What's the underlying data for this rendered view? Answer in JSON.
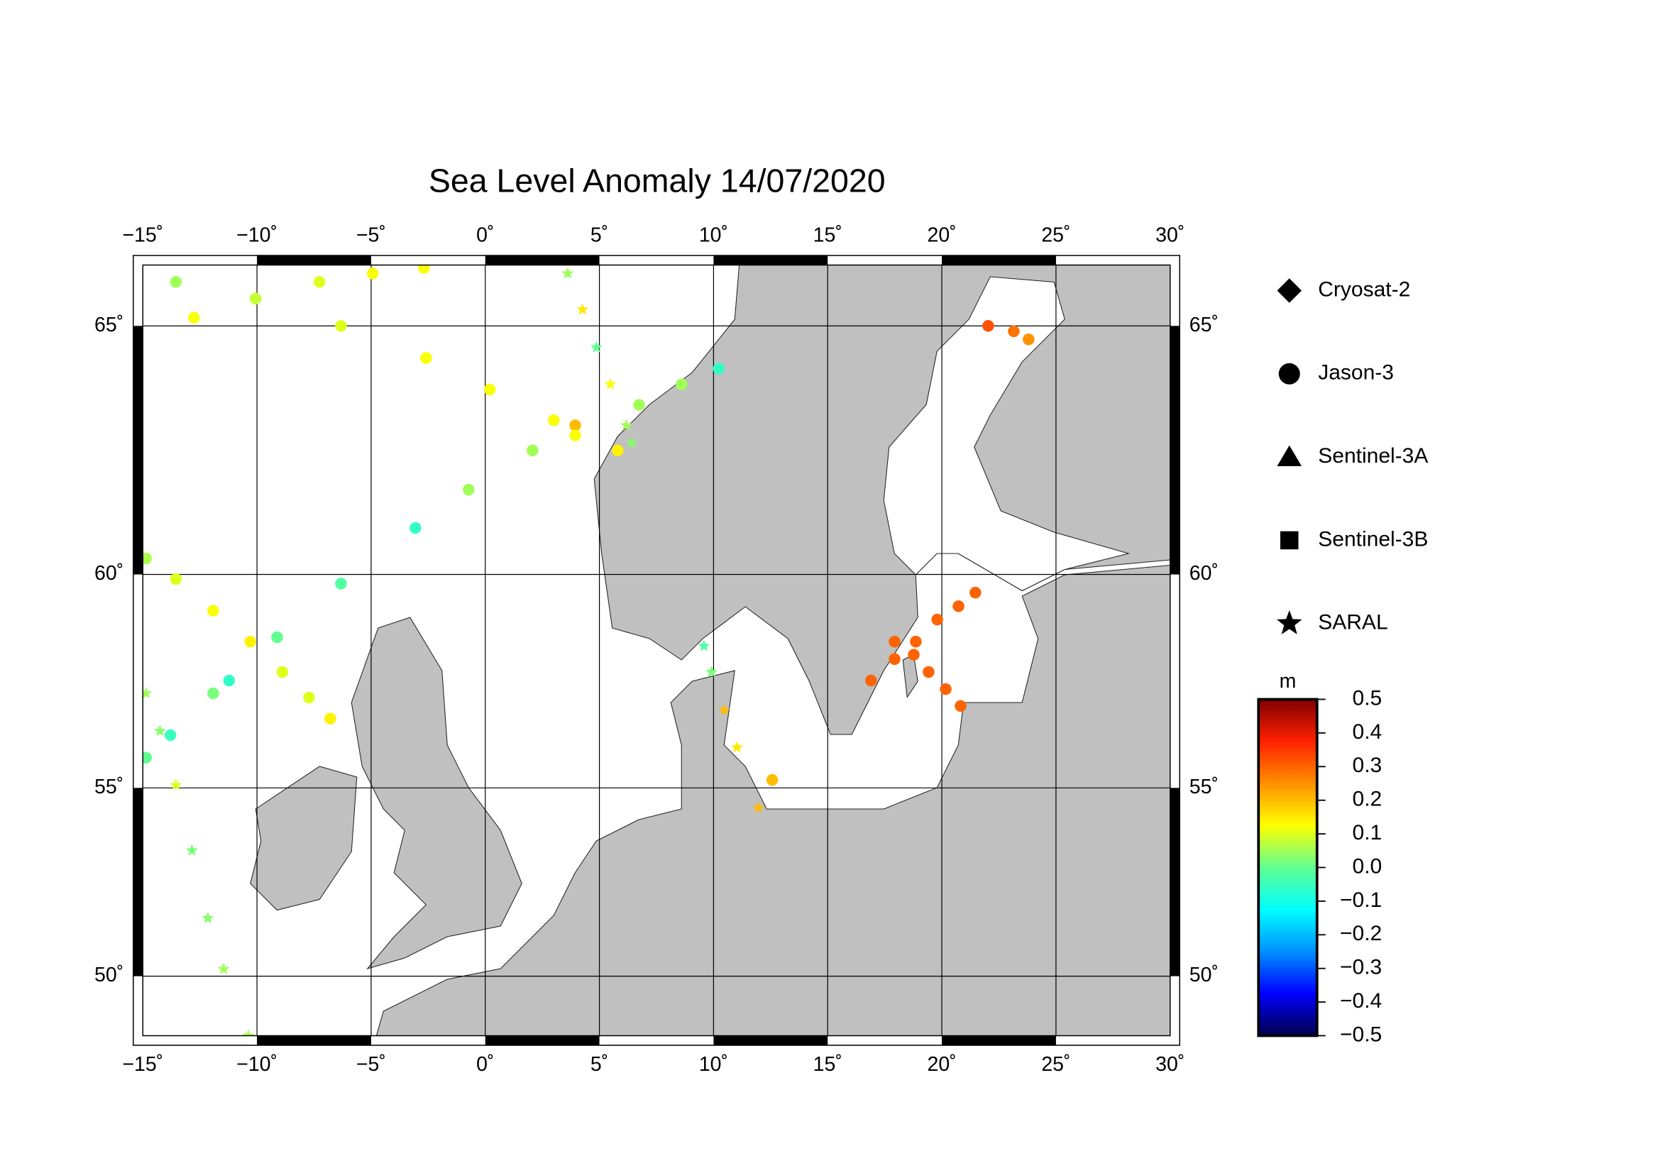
{
  "chart_data": {
    "type": "track-map",
    "title": "Sea Level Anomaly 14/07/2020",
    "projection": "mercator",
    "xlim": [
      -15,
      30
    ],
    "ylim": [
      48.3,
      66.1
    ],
    "xticks": [
      {
        "value": -15,
        "label": "−15˚"
      },
      {
        "value": -10,
        "label": "−10˚"
      },
      {
        "value": -5,
        "label": "−5˚"
      },
      {
        "value": 0,
        "label": "0˚"
      },
      {
        "value": 5,
        "label": "5˚"
      },
      {
        "value": 10,
        "label": "10˚"
      },
      {
        "value": 15,
        "label": "15˚"
      },
      {
        "value": 20,
        "label": "20˚"
      },
      {
        "value": 25,
        "label": "25˚"
      },
      {
        "value": 30,
        "label": "30˚"
      }
    ],
    "yticks": [
      {
        "value": 50,
        "label": "50˚"
      },
      {
        "value": 55,
        "label": "55˚"
      },
      {
        "value": 60,
        "label": "60˚"
      },
      {
        "value": 65,
        "label": "65˚"
      }
    ],
    "grid": true,
    "colorbar": {
      "label": "m",
      "clim": [
        -0.5,
        0.5
      ],
      "colormap": [
        "#00004c",
        "#0000ff",
        "#0090ff",
        "#00ffff",
        "#60ff90",
        "#ffff00",
        "#ff9000",
        "#ff2000",
        "#800000"
      ],
      "ticks": [
        0.5,
        0.4,
        0.3,
        0.2,
        0.1,
        {
          "value": 0,
          "label": "0.0"
        },
        {
          "value": -0.1,
          "label": "−0.1"
        },
        {
          "value": -0.2,
          "label": "−0.2"
        },
        {
          "value": -0.3,
          "label": "−0.3"
        },
        {
          "value": -0.4,
          "label": "−0.4"
        },
        {
          "value": -0.5,
          "label": "−0.5"
        }
      ]
    },
    "series": [
      {
        "name": "Cryosat-2",
        "marker": "diamond"
      },
      {
        "name": "Jason-3",
        "marker": "circle",
        "tracks": [
          {
            "lon": [
              -13.55,
              -10.06,
              -6.32,
              -2.59,
              0.2,
              3.0,
              3.94,
              5.8
            ],
            "lat": [
              65.8,
              65.5,
              65.0,
              64.4,
              63.8,
              63.2,
              63.1,
              62.6
            ],
            "values": [
              0.05,
              0.07,
              0.1,
              0.12,
              0.12,
              0.12,
              0.2,
              0.14
            ]
          },
          {
            "lon": [
              -12.76,
              -10.06,
              -7.26,
              -4.93,
              -2.69
            ],
            "lat": [
              65.15,
              65.5,
              65.8,
              65.95,
              66.05
            ],
            "values": [
              0.12,
              0.08,
              0.1,
              0.12,
              0.12
            ]
          },
          {
            "lon": [
              -14.86,
              -13.79,
              -11.92,
              -11.22,
              -9.12,
              -6.32,
              -3.06,
              -0.73,
              2.07,
              3.94,
              6.74,
              8.6,
              10.23
            ],
            "lat": [
              55.75,
              56.3,
              57.3,
              57.6,
              58.6,
              59.8,
              61.0,
              61.8,
              62.6,
              62.9,
              63.5,
              63.9,
              64.2
            ],
            "values": [
              0.0,
              -0.05,
              0.02,
              -0.06,
              0.0,
              -0.02,
              -0.06,
              0.05,
              0.05,
              0.12,
              0.05,
              0.05,
              -0.06
            ]
          },
          {
            "lon": [
              -14.86,
              -13.55,
              -11.92,
              -10.29,
              -8.89,
              -7.72,
              -6.79
            ],
            "lat": [
              60.35,
              59.9,
              59.2,
              58.5,
              57.8,
              57.2,
              56.7
            ],
            "values": [
              0.06,
              0.1,
              0.12,
              0.14,
              0.1,
              0.1,
              0.14
            ]
          },
          {
            "lon": [
              16.9,
              17.93,
              18.86,
              19.8,
              20.73,
              21.47
            ],
            "lat": [
              57.6,
              58.1,
              58.5,
              59.0,
              59.3,
              59.6
            ],
            "values": [
              0.3,
              0.3,
              0.3,
              0.3,
              0.3,
              0.3
            ]
          },
          {
            "lon": [
              17.93,
              18.77,
              19.42,
              20.17,
              20.82
            ],
            "lat": [
              58.5,
              58.2,
              57.8,
              57.4,
              57.0
            ],
            "values": [
              0.3,
              0.3,
              0.3,
              0.3,
              0.3
            ]
          },
          {
            "lon": [
              22.03,
              23.15,
              23.8
            ],
            "lat": [
              65.0,
              64.9,
              64.75
            ],
            "values": [
              0.32,
              0.28,
              0.25
            ]
          },
          {
            "lon": [
              12.57
            ],
            "lat": [
              55.2
            ],
            "values": [
              0.2
            ]
          }
        ]
      },
      {
        "name": "Sentinel-3A",
        "marker": "triangle"
      },
      {
        "name": "Sentinel-3B",
        "marker": "square"
      },
      {
        "name": "SARAL",
        "marker": "star",
        "tracks": [
          {
            "lon": [
              -14.86,
              -14.25,
              -13.55,
              -12.85,
              -12.15,
              -11.46,
              -10.38
            ],
            "lat": [
              57.3,
              56.4,
              55.07,
              53.4,
              51.6,
              50.2,
              48.3
            ],
            "values": [
              0.05,
              0.03,
              0.1,
              0.02,
              0.03,
              0.05,
              0.06
            ]
          },
          {
            "lon": [
              3.61,
              4.26,
              4.87,
              5.48,
              6.18,
              6.41
            ],
            "lat": [
              65.95,
              65.3,
              64.6,
              63.9,
              63.1,
              62.75
            ],
            "values": [
              0.05,
              0.15,
              0.0,
              0.12,
              0.05,
              0.03
            ]
          },
          {
            "lon": [
              9.58,
              9.91,
              10.47,
              11.03,
              11.96
            ],
            "lat": [
              58.4,
              57.8,
              56.9,
              56.0,
              54.5
            ],
            "values": [
              -0.02,
              0.02,
              0.2,
              0.15,
              0.2
            ]
          }
        ]
      }
    ]
  }
}
